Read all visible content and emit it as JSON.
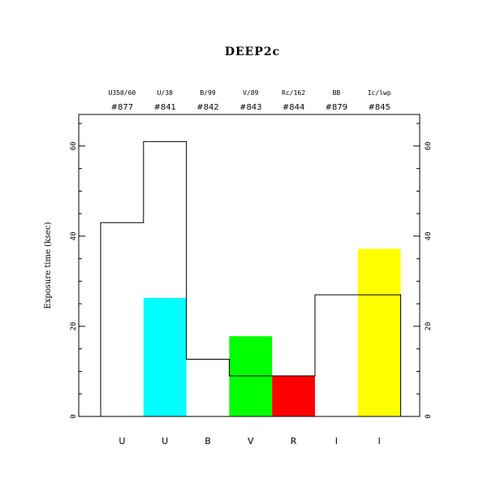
{
  "chart_data": {
    "type": "bar",
    "title": "DEEP2c",
    "ylabel": "Exposure time (ksec)",
    "xlabel": "",
    "ylim": [
      0,
      67
    ],
    "yticks": [
      0,
      20,
      40,
      60
    ],
    "categories": [
      "U",
      "U",
      "B",
      "V",
      "R",
      "I",
      "I"
    ],
    "filter_labels": [
      "U350/60",
      "U/38",
      "B/99",
      "V/89",
      "Rc/162",
      "BB",
      "Ic/lwp"
    ],
    "filter_numbers": [
      "#877",
      "#841",
      "#842",
      "#843",
      "#844",
      "#879",
      "#845"
    ],
    "series": [
      {
        "name": "",
        "values": [
          43,
          61,
          12.7,
          9,
          9,
          27,
          27
        ],
        "style": "outline",
        "color": "#000000"
      },
      {
        "name": "",
        "values": [
          0,
          26.3,
          0,
          17.8,
          9,
          0,
          37.2
        ],
        "style": "filled",
        "colors": [
          "#ffffff",
          "#00ffff",
          "#ffffff",
          "#00ff00",
          "#ff0000",
          "#ffffff",
          "#ffff00"
        ]
      }
    ]
  }
}
